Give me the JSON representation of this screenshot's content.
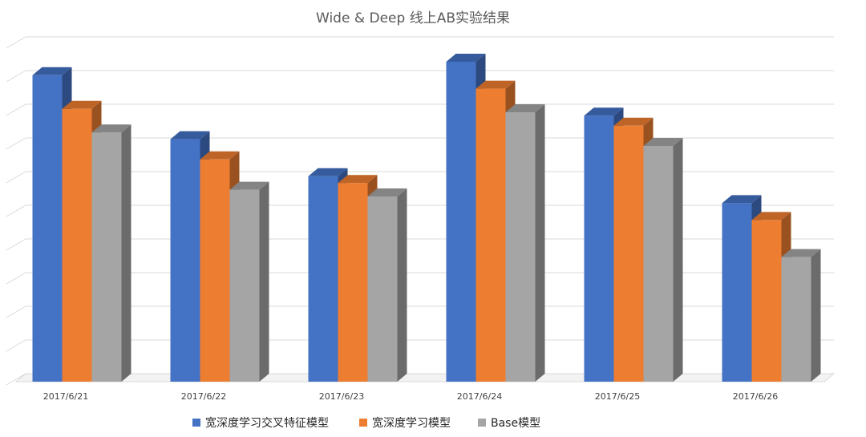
{
  "chart_data": {
    "type": "bar",
    "title": "Wide & Deep 线上AB实验结果",
    "categories": [
      "2017/6/21",
      "2017/6/22",
      "2017/6/23",
      "2017/6/24",
      "2017/6/25",
      "2017/6/26"
    ],
    "series": [
      {
        "name": "宽深度学习交叉特征模型",
        "color": "#4472C4",
        "values": [
          9.1,
          7.2,
          6.1,
          9.5,
          7.9,
          5.3
        ]
      },
      {
        "name": "宽深度学习模型",
        "color": "#ED7D31",
        "values": [
          8.1,
          6.6,
          5.9,
          8.7,
          7.6,
          4.8
        ]
      },
      {
        "name": "Base模型",
        "color": "#A5A5A5",
        "values": [
          7.4,
          5.7,
          5.5,
          8.0,
          7.0,
          3.7
        ]
      }
    ],
    "ylim": [
      0,
      10
    ],
    "grid": true,
    "legend": "bottom",
    "xlabel": "",
    "ylabel": "",
    "render": "3d-column"
  }
}
